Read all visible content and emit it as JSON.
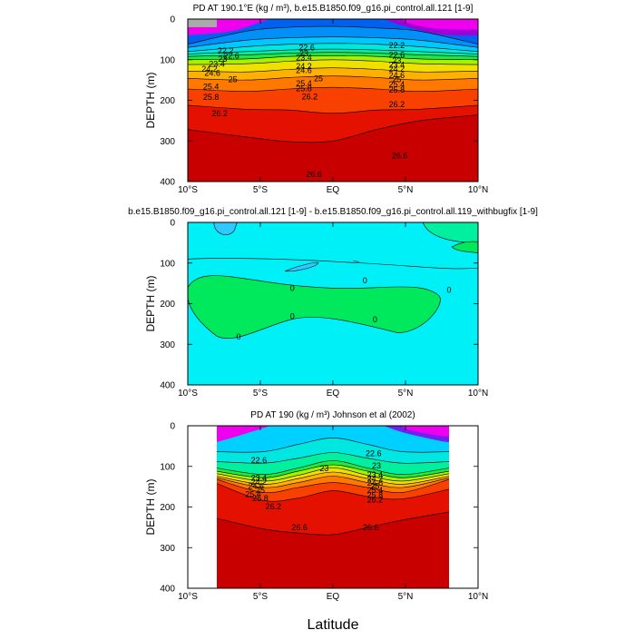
{
  "figure": {
    "xlabel": "Latitude"
  },
  "chart_data": [
    {
      "type": "heatmap",
      "title": "PD AT 190.1°E (kg / m³), b.e15.B1850.f09_g16.pi_control.all.121 [1-9]",
      "ylabel": "DEPTH (m)",
      "xlabel": "",
      "x_ticks": [
        "10°S",
        "5°S",
        "EQ",
        "5°N",
        "10°N"
      ],
      "y_ticks": [
        "0",
        "100",
        "200",
        "300",
        "400"
      ],
      "xlim": [
        -10,
        10
      ],
      "ylim": [
        400,
        0
      ],
      "fill_colors": [
        "#ee00ee",
        "#a000d8",
        "#0010ee",
        "#0060f0",
        "#0090f8",
        "#00c8ff",
        "#00e6e0",
        "#00f0a0",
        "#20e840",
        "#a8f000",
        "#f0e000",
        "#ffb000",
        "#ff7800",
        "#f84000",
        "#e41000",
        "#c80000"
      ],
      "contours": [
        {
          "level": "22.2",
          "depths": [
            62,
            30,
            20,
            18,
            22,
            30,
            62
          ]
        },
        {
          "level": "22.6",
          "depths": [
            70,
            52,
            46,
            44,
            46,
            52,
            70
          ]
        },
        {
          "level": "23",
          "depths": [
            80,
            68,
            62,
            60,
            62,
            68,
            80
          ]
        },
        {
          "level": "23.4",
          "depths": [
            86,
            80,
            76,
            74,
            76,
            80,
            86
          ]
        },
        {
          "level": "23.8",
          "depths": [
            92,
            88,
            84,
            82,
            84,
            88,
            92
          ]
        },
        {
          "level": "24.2",
          "depths": [
            100,
            98,
            92,
            90,
            92,
            98,
            100
          ]
        },
        {
          "level": "24.6",
          "depths": [
            112,
            110,
            104,
            100,
            104,
            110,
            112
          ]
        },
        {
          "level": "25",
          "depths": [
            128,
            130,
            124,
            120,
            124,
            130,
            128
          ]
        },
        {
          "level": "25.4",
          "depths": [
            146,
            150,
            144,
            140,
            144,
            150,
            146
          ]
        },
        {
          "level": "25.8",
          "depths": [
            172,
            178,
            172,
            168,
            172,
            178,
            172
          ]
        },
        {
          "level": "26.2",
          "depths": [
            212,
            222,
            224,
            232,
            224,
            222,
            212
          ]
        },
        {
          "level": "26.6",
          "depths": [
            272,
            290,
            302,
            300,
            272,
            250,
            236
          ]
        }
      ],
      "contour_labels": [
        {
          "text": "22.2",
          "lat": -7.4,
          "depth": 80
        },
        {
          "text": "22.6",
          "lat": -7.0,
          "depth": 92
        },
        {
          "text": "23",
          "lat": -7.6,
          "depth": 100
        },
        {
          "text": "23.4",
          "lat": -8.0,
          "depth": 112
        },
        {
          "text": "24.2",
          "lat": -8.5,
          "depth": 124
        },
        {
          "text": "24.6",
          "lat": -8.3,
          "depth": 134
        },
        {
          "text": "25",
          "lat": -6.9,
          "depth": 150
        },
        {
          "text": "25.4",
          "lat": -8.4,
          "depth": 168
        },
        {
          "text": "25.8",
          "lat": -8.4,
          "depth": 194
        },
        {
          "text": "26.2",
          "lat": -7.8,
          "depth": 234
        },
        {
          "text": "22.6",
          "lat": -1.8,
          "depth": 72
        },
        {
          "text": "23",
          "lat": -2.0,
          "depth": 86
        },
        {
          "text": "23.4",
          "lat": -2.0,
          "depth": 96
        },
        {
          "text": "24.2",
          "lat": -2.0,
          "depth": 118
        },
        {
          "text": "24.6",
          "lat": -2.0,
          "depth": 128
        },
        {
          "text": "25",
          "lat": -1.0,
          "depth": 148
        },
        {
          "text": "25.4",
          "lat": -2.0,
          "depth": 160
        },
        {
          "text": "25.8",
          "lat": -2.0,
          "depth": 172
        },
        {
          "text": "26.2",
          "lat": -1.6,
          "depth": 192
        },
        {
          "text": "22.2",
          "lat": 4.4,
          "depth": 66
        },
        {
          "text": "22.6",
          "lat": 4.4,
          "depth": 90
        },
        {
          "text": "23",
          "lat": 4.4,
          "depth": 104
        },
        {
          "text": "23.4",
          "lat": 4.4,
          "depth": 114
        },
        {
          "text": "24.2",
          "lat": 4.4,
          "depth": 124
        },
        {
          "text": "24.6",
          "lat": 4.4,
          "depth": 140
        },
        {
          "text": "25",
          "lat": 4.4,
          "depth": 150
        },
        {
          "text": "25.4",
          "lat": 4.4,
          "depth": 162
        },
        {
          "text": "25.8",
          "lat": 4.4,
          "depth": 176
        },
        {
          "text": "26.2",
          "lat": 4.4,
          "depth": 212
        },
        {
          "text": "26.6",
          "lat": 4.6,
          "depth": 338
        },
        {
          "text": "26.6",
          "lat": -1.3,
          "depth": 384
        }
      ]
    },
    {
      "type": "heatmap",
      "title": "b.e15.B1850.f09_g16.pi_control.all.121 [1-9] - b.e15.B1850.f09_g16.pi_control.all.119_withbugfix [1-9]",
      "ylabel": "DEPTH (m)",
      "xlabel": "",
      "x_ticks": [
        "10°S",
        "5°S",
        "EQ",
        "5°N",
        "10°N"
      ],
      "y_ticks": [
        "0",
        "100",
        "200",
        "300",
        "400"
      ],
      "xlim": [
        -10,
        10
      ],
      "ylim": [
        400,
        0
      ],
      "fill_colors": [
        "#00f0f8",
        "#00f0a0",
        "#00e85c"
      ],
      "contour_labels": [
        {
          "text": "0",
          "lat": -6.5,
          "depth": 283
        },
        {
          "text": "0",
          "lat": -2.8,
          "depth": 163
        },
        {
          "text": "0",
          "lat": -2.8,
          "depth": 233
        },
        {
          "text": "0",
          "lat": 2.2,
          "depth": 144
        },
        {
          "text": "0",
          "lat": 2.9,
          "depth": 240
        },
        {
          "text": "0",
          "lat": 8.0,
          "depth": 168
        }
      ]
    },
    {
      "type": "heatmap",
      "title": "PD AT 190 (kg / m³) Johnson et al (2002)",
      "ylabel": "DEPTH (m)",
      "xlabel": "Latitude",
      "x_ticks": [
        "10°S",
        "5°S",
        "EQ",
        "5°N",
        "10°N"
      ],
      "y_ticks": [
        "0",
        "100",
        "200",
        "300",
        "400"
      ],
      "xlim": [
        -10,
        10
      ],
      "ylim": [
        400,
        0
      ],
      "data_lat_range": [
        -8,
        8
      ],
      "fill_colors": [
        "#ee00ee",
        "#7020f0",
        "#1058f0",
        "#0070ff",
        "#00a8ff",
        "#00d0ff",
        "#00e6e0",
        "#00f0a0",
        "#20e840",
        "#a8f000",
        "#f0e000",
        "#ffb000",
        "#ff7800",
        "#f84000",
        "#e41000",
        "#c80000"
      ],
      "contours": [
        {
          "level": "22.6",
          "depths": [
            64,
            64,
            46,
            30,
            46,
            64,
            64
          ]
        },
        {
          "level": "23",
          "depths": [
            88,
            92,
            80,
            66,
            80,
            92,
            88
          ]
        },
        {
          "level": "23.4",
          "depths": [
            104,
            120,
            104,
            86,
            104,
            120,
            104
          ]
        },
        {
          "level": "24.2",
          "depths": [
            112,
            128,
            112,
            96,
            112,
            128,
            112
          ]
        },
        {
          "level": "24.6",
          "depths": [
            118,
            136,
            122,
            104,
            122,
            136,
            118
          ]
        },
        {
          "level": "25",
          "depths": [
            124,
            144,
            130,
            114,
            130,
            144,
            124
          ]
        },
        {
          "level": "25.4",
          "depths": [
            128,
            152,
            140,
            124,
            140,
            152,
            128
          ]
        },
        {
          "level": "25.8",
          "depths": [
            132,
            164,
            152,
            140,
            152,
            164,
            132
          ]
        },
        {
          "level": "26.2",
          "depths": [
            142,
            184,
            178,
            160,
            174,
            180,
            156
          ]
        },
        {
          "level": "26.6",
          "depths": [
            228,
            254,
            264,
            268,
            250,
            232,
            212
          ]
        }
      ],
      "contour_labels": [
        {
          "text": "22.6",
          "lat": -5.1,
          "depth": 86
        },
        {
          "text": "23",
          "lat": -0.6,
          "depth": 106
        },
        {
          "text": "23.4",
          "lat": -5.1,
          "depth": 130
        },
        {
          "text": "24.2",
          "lat": -5.1,
          "depth": 140
        },
        {
          "text": "24.6",
          "lat": -5.3,
          "depth": 150
        },
        {
          "text": "25",
          "lat": -5.0,
          "depth": 160
        },
        {
          "text": "25.4",
          "lat": -5.5,
          "depth": 170
        },
        {
          "text": "25.8",
          "lat": -5.0,
          "depth": 180
        },
        {
          "text": "26.2",
          "lat": -4.1,
          "depth": 200
        },
        {
          "text": "22.6",
          "lat": 2.8,
          "depth": 70
        },
        {
          "text": "23",
          "lat": 3.0,
          "depth": 100
        },
        {
          "text": "23.4",
          "lat": 2.9,
          "depth": 122
        },
        {
          "text": "24.2",
          "lat": 2.9,
          "depth": 132
        },
        {
          "text": "24.6",
          "lat": 2.9,
          "depth": 142
        },
        {
          "text": "25",
          "lat": 2.9,
          "depth": 150
        },
        {
          "text": "25.4",
          "lat": 2.9,
          "depth": 160
        },
        {
          "text": "25.8",
          "lat": 2.9,
          "depth": 172
        },
        {
          "text": "26.2",
          "lat": 2.9,
          "depth": 184
        },
        {
          "text": "26.6",
          "lat": -2.3,
          "depth": 252
        },
        {
          "text": "26.6",
          "lat": 2.6,
          "depth": 252
        }
      ]
    }
  ]
}
